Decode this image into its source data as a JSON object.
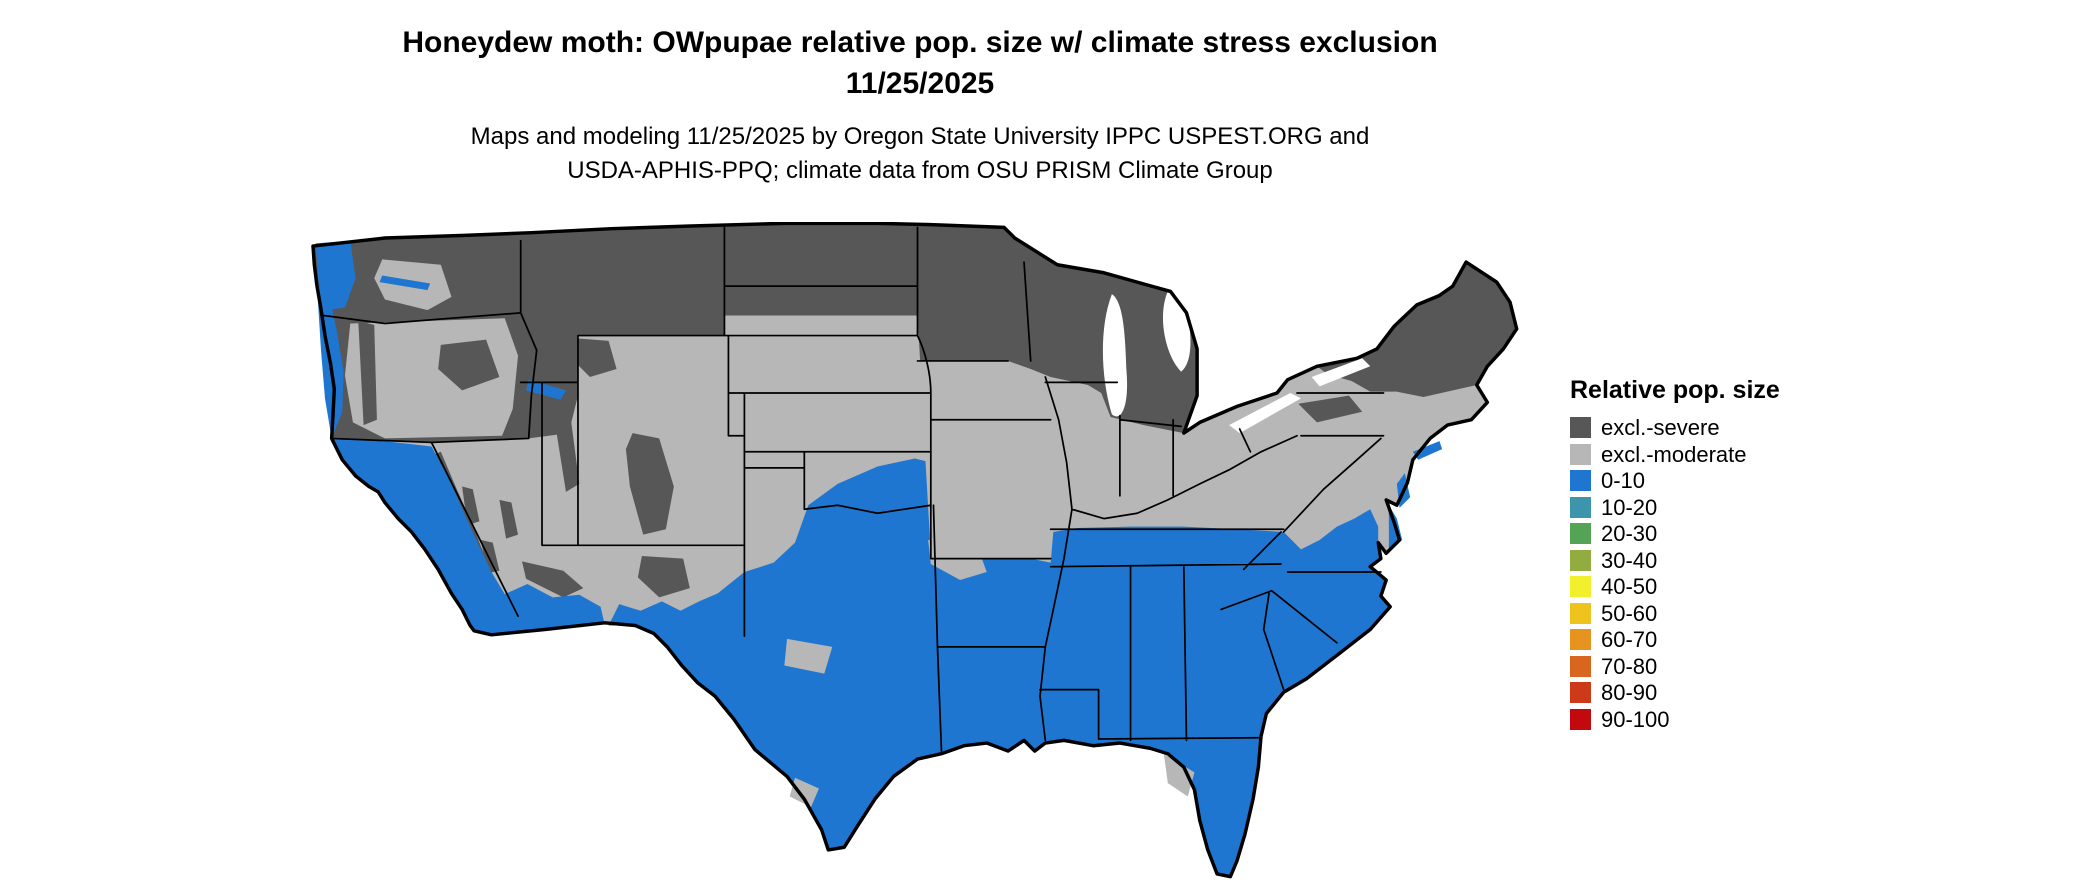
{
  "title": "Honeydew moth: OWpupae relative pop. size w/ climate stress exclusion 11/25/2025",
  "subtitle": "Maps and modeling 11/25/2025 by Oregon State University IPPC USPEST.ORG and USDA-APHIS-PPQ; climate data from OSU PRISM Climate Group",
  "legend": {
    "title": "Relative pop. size",
    "items": [
      {
        "label": "excl.-severe",
        "color": "#575757"
      },
      {
        "label": "excl.-moderate",
        "color": "#b7b7b7"
      },
      {
        "label": "0-10",
        "color": "#1f76d1"
      },
      {
        "label": "10-20",
        "color": "#3d95ab"
      },
      {
        "label": "20-30",
        "color": "#55a455"
      },
      {
        "label": "30-40",
        "color": "#93ac40"
      },
      {
        "label": "40-50",
        "color": "#f2ef2c"
      },
      {
        "label": "50-60",
        "color": "#eec31e"
      },
      {
        "label": "60-70",
        "color": "#e6941f"
      },
      {
        "label": "70-80",
        "color": "#d9661e"
      },
      {
        "label": "80-90",
        "color": "#cc3a1a"
      },
      {
        "label": "90-100",
        "color": "#c20a0e"
      }
    ]
  },
  "map": {
    "background_color": "#ffffff",
    "boundary_color": "#000000"
  }
}
